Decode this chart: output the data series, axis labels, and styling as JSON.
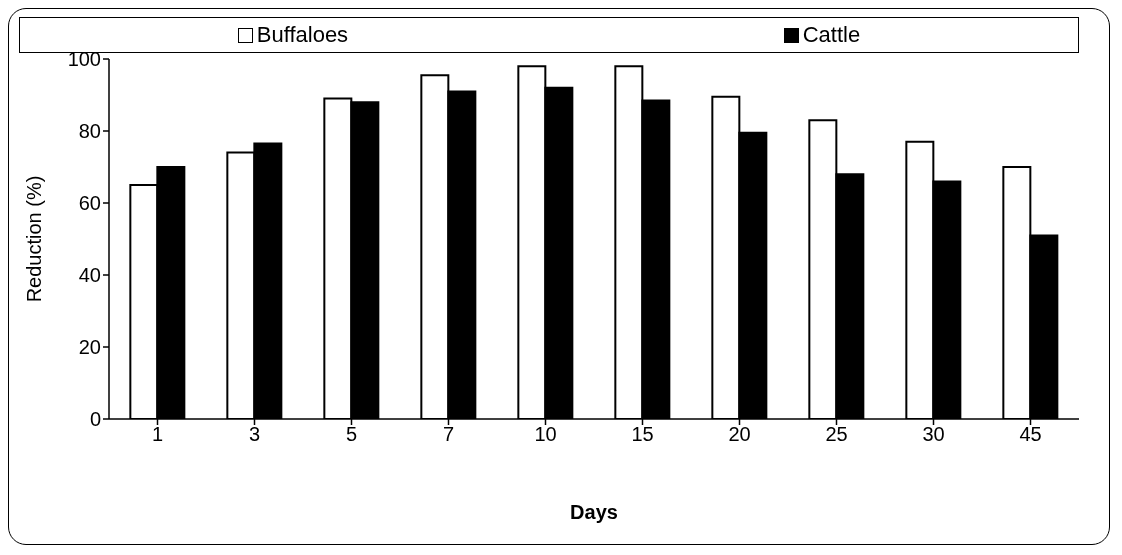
{
  "chart_data": {
    "type": "bar",
    "xlabel": "Days",
    "ylabel": "Reduction (%)",
    "categories": [
      "1",
      "3",
      "5",
      "7",
      "10",
      "15",
      "20",
      "25",
      "30",
      "45"
    ],
    "series": [
      {
        "name": "Buffaloes",
        "color": "#ffffff",
        "values": [
          65,
          74,
          89,
          95.5,
          98,
          98,
          89.5,
          83,
          77,
          70
        ]
      },
      {
        "name": "Cattle",
        "color": "#000000",
        "values": [
          70,
          76.5,
          88,
          91,
          92,
          88.5,
          79.5,
          68,
          66,
          51
        ]
      }
    ],
    "ylim": [
      0,
      100
    ],
    "yticks": [
      0,
      20,
      40,
      60,
      80,
      100
    ],
    "legend": "top"
  }
}
